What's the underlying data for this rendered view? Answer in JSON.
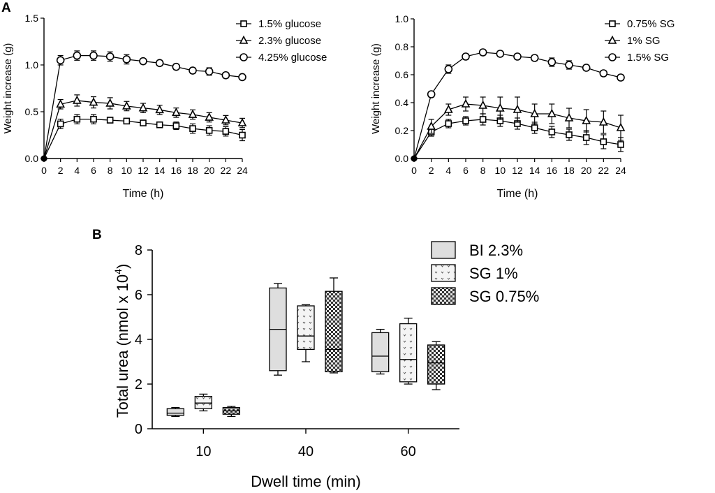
{
  "panel_labels": {
    "a": "A",
    "b": "B"
  },
  "chart_data": [
    {
      "id": "A1",
      "type": "line",
      "title": "",
      "xlabel": "Time (h)",
      "ylabel": "Weight increase (g)",
      "xlim": [
        0,
        24
      ],
      "ylim": [
        0,
        1.5
      ],
      "xticks": [
        0,
        2,
        4,
        6,
        8,
        10,
        12,
        14,
        16,
        18,
        20,
        22,
        24
      ],
      "yticks": [
        0.0,
        0.5,
        1.0,
        1.5
      ],
      "ytick_labels": [
        "0.0",
        "0.5",
        "1.0",
        "1.5"
      ],
      "legend_position": "top-right",
      "series": [
        {
          "name": "1.5% glucose",
          "marker": "square",
          "x": [
            0,
            2,
            4,
            6,
            8,
            10,
            12,
            14,
            16,
            18,
            20,
            22,
            24
          ],
          "y": [
            0,
            0.37,
            0.42,
            0.42,
            0.41,
            0.4,
            0.38,
            0.36,
            0.35,
            0.32,
            0.3,
            0.29,
            0.25
          ],
          "err": [
            0,
            0.05,
            0.05,
            0.05,
            0.03,
            0.03,
            0.03,
            0.03,
            0.04,
            0.05,
            0.05,
            0.05,
            0.06
          ]
        },
        {
          "name": "2.3% glucose",
          "marker": "triangle",
          "x": [
            0,
            2,
            4,
            6,
            8,
            10,
            12,
            14,
            16,
            18,
            20,
            22,
            24
          ],
          "y": [
            0,
            0.58,
            0.62,
            0.6,
            0.59,
            0.56,
            0.54,
            0.52,
            0.49,
            0.47,
            0.44,
            0.41,
            0.38
          ],
          "err": [
            0,
            0.05,
            0.06,
            0.06,
            0.06,
            0.05,
            0.05,
            0.05,
            0.05,
            0.05,
            0.05,
            0.05,
            0.05
          ]
        },
        {
          "name": "4.25% glucose",
          "marker": "circle",
          "x": [
            0,
            2,
            4,
            6,
            8,
            10,
            12,
            14,
            16,
            18,
            20,
            22,
            24
          ],
          "y": [
            0,
            1.05,
            1.1,
            1.1,
            1.09,
            1.06,
            1.04,
            1.02,
            0.98,
            0.94,
            0.93,
            0.89,
            0.87
          ],
          "err": [
            0,
            0.05,
            0.05,
            0.05,
            0.05,
            0.05,
            0.03,
            0.03,
            0.03,
            0.03,
            0.04,
            0.03,
            0.03
          ]
        }
      ]
    },
    {
      "id": "A2",
      "type": "line",
      "title": "",
      "xlabel": "Time (h)",
      "ylabel": "Weight increase (g)",
      "xlim": [
        0,
        24
      ],
      "ylim": [
        0,
        1.0
      ],
      "xticks": [
        0,
        2,
        4,
        6,
        8,
        10,
        12,
        14,
        16,
        18,
        20,
        22,
        24
      ],
      "yticks": [
        0.0,
        0.2,
        0.4,
        0.6,
        0.8,
        1.0
      ],
      "ytick_labels": [
        "0.0",
        "0.2",
        "0.4",
        "0.6",
        "0.8",
        "1.0"
      ],
      "legend_position": "top-right",
      "series": [
        {
          "name": "0.75% SG",
          "marker": "square",
          "x": [
            0,
            2,
            4,
            6,
            8,
            10,
            12,
            14,
            16,
            18,
            20,
            22,
            24
          ],
          "y": [
            0,
            0.19,
            0.25,
            0.27,
            0.28,
            0.27,
            0.25,
            0.22,
            0.19,
            0.17,
            0.15,
            0.12,
            0.1
          ],
          "err": [
            0,
            0.03,
            0.03,
            0.03,
            0.04,
            0.04,
            0.04,
            0.04,
            0.04,
            0.04,
            0.05,
            0.05,
            0.05
          ]
        },
        {
          "name": "1% SG",
          "marker": "triangle",
          "x": [
            0,
            2,
            4,
            6,
            8,
            10,
            12,
            14,
            16,
            18,
            20,
            22,
            24
          ],
          "y": [
            0,
            0.23,
            0.35,
            0.39,
            0.38,
            0.36,
            0.35,
            0.32,
            0.32,
            0.29,
            0.27,
            0.26,
            0.22
          ],
          "err": [
            0,
            0.05,
            0.04,
            0.05,
            0.06,
            0.08,
            0.09,
            0.07,
            0.07,
            0.07,
            0.08,
            0.08,
            0.09
          ]
        },
        {
          "name": "1.5% SG",
          "marker": "circle",
          "x": [
            0,
            2,
            4,
            6,
            8,
            10,
            12,
            14,
            16,
            18,
            20,
            22,
            24
          ],
          "y": [
            0,
            0.46,
            0.64,
            0.73,
            0.76,
            0.75,
            0.73,
            0.72,
            0.69,
            0.67,
            0.65,
            0.61,
            0.58
          ],
          "err": [
            0,
            0.02,
            0.03,
            0.02,
            0.02,
            0.02,
            0.02,
            0.02,
            0.03,
            0.03,
            0.02,
            0.02,
            0.02
          ]
        }
      ]
    },
    {
      "id": "B",
      "type": "box",
      "title": "",
      "xlabel": "Dwell time (min)",
      "ylabel": "Total urea (nmol x 10",
      "ylabel_superscript": "4",
      "ylabel_suffix": ")",
      "ylim": [
        0,
        8
      ],
      "yticks": [
        0,
        2,
        4,
        6,
        8
      ],
      "ytick_labels": [
        "0",
        "2",
        "4",
        "6",
        "8"
      ],
      "categories": [
        "10",
        "40",
        "60"
      ],
      "legend_position": "top-right",
      "series": [
        {
          "name": "BI 2.3%",
          "pattern": "solid-gray",
          "boxes": [
            {
              "min": 0.55,
              "q1": 0.6,
              "median": 0.7,
              "q3": 0.9,
              "max": 0.95
            },
            {
              "min": 2.4,
              "q1": 2.6,
              "median": 4.45,
              "q3": 6.3,
              "max": 6.5
            },
            {
              "min": 2.45,
              "q1": 2.55,
              "median": 3.25,
              "q3": 4.3,
              "max": 4.45
            }
          ]
        },
        {
          "name": "SG 1%",
          "pattern": "sparse-dots",
          "boxes": [
            {
              "min": 0.8,
              "q1": 0.9,
              "median": 1.15,
              "q3": 1.45,
              "max": 1.55
            },
            {
              "min": 3.0,
              "q1": 3.55,
              "median": 4.15,
              "q3": 5.5,
              "max": 5.55
            },
            {
              "min": 2.0,
              "q1": 2.1,
              "median": 3.1,
              "q3": 4.7,
              "max": 4.95
            }
          ]
        },
        {
          "name": "SG 0.75%",
          "pattern": "checker",
          "boxes": [
            {
              "min": 0.55,
              "q1": 0.65,
              "median": 0.8,
              "q3": 0.95,
              "max": 1.0
            },
            {
              "min": 2.5,
              "q1": 2.55,
              "median": 3.55,
              "q3": 6.15,
              "max": 6.75
            },
            {
              "min": 1.75,
              "q1": 2.0,
              "median": 2.95,
              "q3": 3.75,
              "max": 3.9
            }
          ]
        }
      ]
    }
  ]
}
